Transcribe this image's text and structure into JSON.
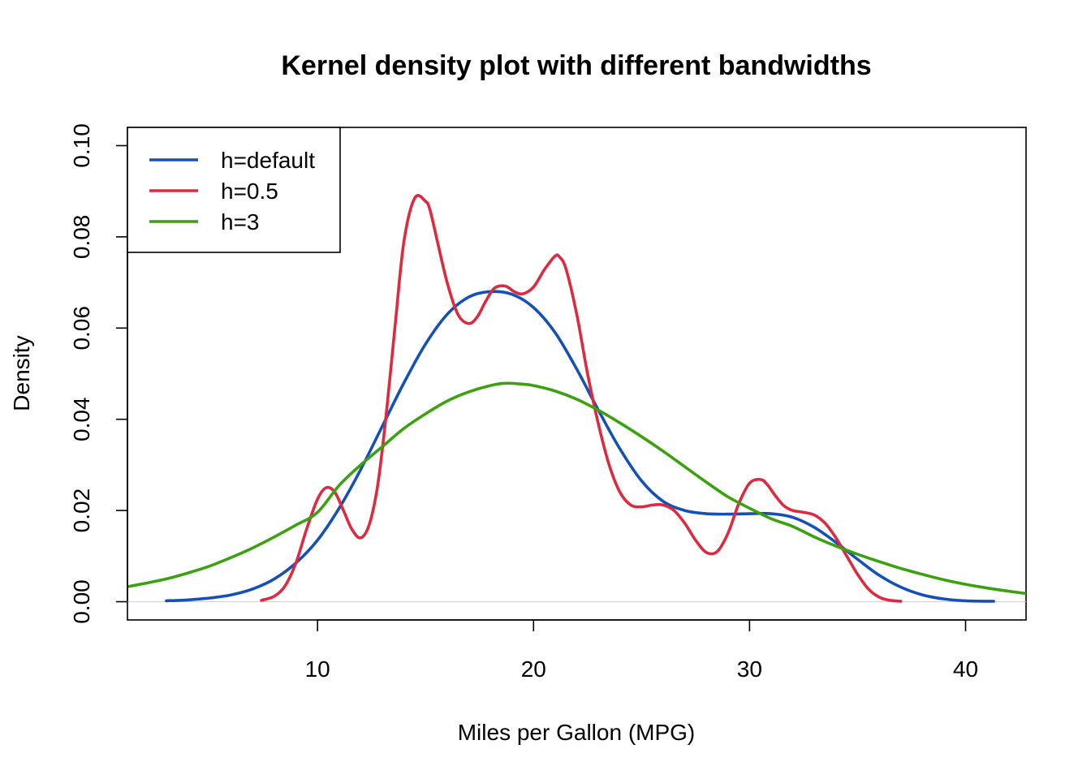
{
  "chart_data": {
    "type": "line",
    "title": "Kernel density plot with different bandwidths",
    "xlabel": "Miles per Gallon (MPG)",
    "ylabel": "Density",
    "xlim": [
      1.2,
      42.8
    ],
    "ylim": [
      -0.004,
      0.104
    ],
    "xticks": [
      "10",
      "20",
      "30",
      "40"
    ],
    "xtick_values": [
      10,
      20,
      30,
      40
    ],
    "yticks": [
      "0.00",
      "0.02",
      "0.04",
      "0.06",
      "0.08",
      "0.10"
    ],
    "ytick_values": [
      0,
      0.02,
      0.04,
      0.06,
      0.08,
      0.1
    ],
    "grid": false,
    "legend_position": "top-left",
    "baseline_color": "#d0d0d0",
    "series": [
      {
        "name": "h=default",
        "color": "#1350b8",
        "x": [
          3.0,
          4.0,
          5.0,
          6.0,
          7.0,
          8.0,
          9.0,
          10.0,
          11.0,
          12.0,
          13.0,
          14.0,
          15.0,
          16.0,
          17.0,
          18.0,
          19.0,
          20.0,
          21.0,
          22.0,
          23.0,
          24.0,
          25.0,
          26.0,
          27.0,
          28.0,
          29.0,
          30.0,
          31.0,
          32.0,
          33.0,
          34.0,
          35.0,
          36.0,
          37.0,
          38.0,
          39.0,
          40.0,
          41.3
        ],
        "y": [
          0.0002,
          0.0004,
          0.0008,
          0.0015,
          0.0028,
          0.005,
          0.0085,
          0.0135,
          0.0205,
          0.029,
          0.0385,
          0.048,
          0.0565,
          0.063,
          0.0668,
          0.068,
          0.0674,
          0.0645,
          0.059,
          0.051,
          0.042,
          0.0335,
          0.0265,
          0.022,
          0.02,
          0.0193,
          0.0192,
          0.0193,
          0.0193,
          0.0185,
          0.0163,
          0.013,
          0.0093,
          0.0058,
          0.0032,
          0.0015,
          0.0006,
          0.0002,
          0.0001
        ]
      },
      {
        "name": "h=0.5",
        "color": "#dd2a3e",
        "x": [
          7.4,
          8.0,
          8.5,
          9.0,
          9.5,
          10.0,
          10.4,
          10.8,
          11.2,
          11.6,
          12.0,
          12.4,
          12.8,
          13.2,
          13.6,
          14.0,
          14.5,
          15.0,
          15.2,
          15.5,
          16.0,
          16.5,
          17.0,
          17.4,
          17.8,
          18.2,
          18.7,
          19.1,
          19.5,
          20.0,
          20.5,
          21.0,
          21.2,
          21.5,
          22.0,
          22.5,
          23.0,
          23.5,
          24.0,
          24.5,
          25.0,
          25.5,
          26.0,
          26.5,
          27.0,
          27.5,
          28.0,
          28.5,
          29.0,
          29.5,
          30.0,
          30.5,
          30.8,
          31.2,
          31.6,
          32.0,
          32.5,
          33.0,
          33.5,
          34.0,
          34.5,
          35.0,
          35.5,
          36.0,
          36.5,
          37.0
        ],
        "y": [
          0.0003,
          0.0012,
          0.0035,
          0.0085,
          0.016,
          0.0225,
          0.025,
          0.024,
          0.02,
          0.0158,
          0.014,
          0.017,
          0.026,
          0.042,
          0.061,
          0.079,
          0.0885,
          0.0878,
          0.086,
          0.08,
          0.07,
          0.063,
          0.061,
          0.0625,
          0.066,
          0.0688,
          0.0692,
          0.068,
          0.0675,
          0.069,
          0.0728,
          0.0758,
          0.0756,
          0.073,
          0.063,
          0.05,
          0.039,
          0.03,
          0.024,
          0.0212,
          0.0208,
          0.0212,
          0.0212,
          0.02,
          0.0172,
          0.0135,
          0.0108,
          0.011,
          0.015,
          0.0215,
          0.026,
          0.0268,
          0.0258,
          0.0232,
          0.021,
          0.02,
          0.0196,
          0.019,
          0.0172,
          0.014,
          0.01,
          0.006,
          0.0028,
          0.001,
          0.0003,
          0.0001
        ]
      },
      {
        "name": "h=3",
        "color": "#3ba10e",
        "x": [
          1.2,
          2.0,
          3.0,
          4.0,
          5.0,
          6.0,
          7.0,
          8.0,
          9.0,
          10.0,
          11.0,
          12.0,
          13.0,
          14.0,
          15.0,
          16.0,
          17.0,
          18.0,
          18.7,
          19.5,
          20.0,
          21.0,
          22.0,
          23.0,
          24.0,
          25.0,
          26.0,
          27.0,
          28.0,
          29.0,
          30.0,
          31.0,
          32.0,
          33.0,
          34.0,
          35.0,
          36.0,
          37.0,
          38.0,
          39.0,
          40.0,
          41.0,
          42.0,
          42.8
        ],
        "y": [
          0.0033,
          0.004,
          0.005,
          0.0063,
          0.0078,
          0.0097,
          0.0118,
          0.0142,
          0.0168,
          0.0196,
          0.0255,
          0.03,
          0.034,
          0.038,
          0.0412,
          0.044,
          0.046,
          0.0474,
          0.0479,
          0.0477,
          0.0474,
          0.0462,
          0.0444,
          0.042,
          0.0392,
          0.0362,
          0.033,
          0.0296,
          0.0262,
          0.023,
          0.0205,
          0.0182,
          0.0165,
          0.0142,
          0.0122,
          0.0104,
          0.0088,
          0.0073,
          0.006,
          0.0048,
          0.0038,
          0.003,
          0.0023,
          0.0018
        ]
      }
    ]
  }
}
